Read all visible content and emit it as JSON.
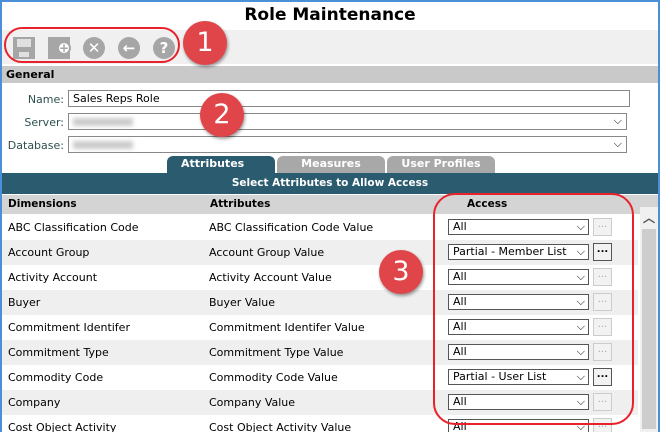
{
  "title": "Role Maintenance",
  "toolbar": {
    "icons": [
      "save-icon",
      "add-new-icon",
      "cancel-icon",
      "back-icon",
      "help-icon"
    ]
  },
  "general": {
    "label": "General",
    "name_label": "Name:",
    "name_value": "Sales Reps Role",
    "server_label": "Server:",
    "database_label": "Database:"
  },
  "tabs": [
    {
      "label": "Attributes",
      "active": true
    },
    {
      "label": "Measures"
    },
    {
      "label": "User Profiles"
    }
  ],
  "band": "Select Attributes to Allow Access",
  "columns": {
    "dimensions": "Dimensions",
    "attributes": "Attributes",
    "access": "Access"
  },
  "rows": [
    {
      "dimension": "ABC Classification Code",
      "attribute": "ABC Classification Code Value",
      "access": "All",
      "button": "...",
      "enabled": false
    },
    {
      "dimension": "Account Group",
      "attribute": "Account Group Value",
      "access": "Partial - Member List",
      "button": "...",
      "enabled": true
    },
    {
      "dimension": "Activity Account",
      "attribute": "Activity Account Value",
      "access": "All",
      "button": "...",
      "enabled": false
    },
    {
      "dimension": "Buyer",
      "attribute": "Buyer Value",
      "access": "All",
      "button": "...",
      "enabled": false
    },
    {
      "dimension": "Commitment Identifer",
      "attribute": "Commitment Identifer Value",
      "access": "All",
      "button": "...",
      "enabled": false
    },
    {
      "dimension": "Commitment Type",
      "attribute": "Commitment Type Value",
      "access": "All",
      "button": "...",
      "enabled": false
    },
    {
      "dimension": "Commodity Code",
      "attribute": "Commodity Code Value",
      "access": "Partial - User List",
      "button": "...",
      "enabled": true
    },
    {
      "dimension": "Company",
      "attribute": "Company Value",
      "access": "All",
      "button": "...",
      "enabled": false
    },
    {
      "dimension": "Cost Object Activity",
      "attribute": "Cost Object Activity Value",
      "access": "All",
      "button": "...",
      "enabled": false
    }
  ],
  "callouts": [
    "1",
    "2",
    "3"
  ],
  "colors": {
    "accent": "#2b5b6f",
    "callout": "#e0454a",
    "border": "#4a8fd8"
  }
}
